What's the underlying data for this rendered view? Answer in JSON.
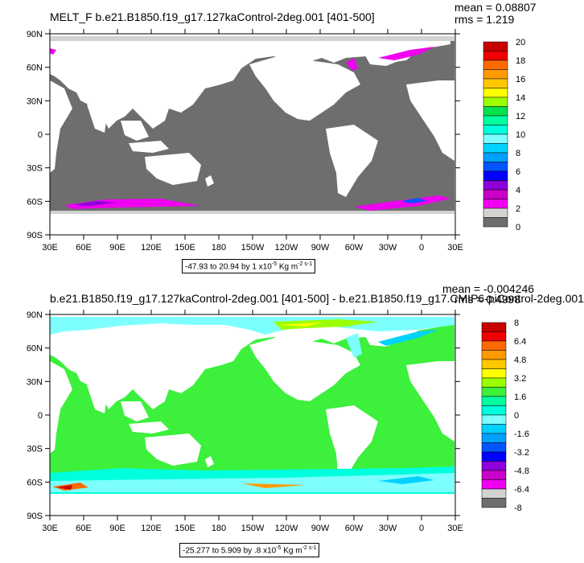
{
  "panel1": {
    "title": "MELT_F b.e21.B1850.f19_g17.127kaControl-2deg.001 [401-500]",
    "mean": "mean = 0.08807",
    "rms": "rms = 1.219",
    "range_text": "-47.93 to 20.94 by 1 x10",
    "range_exp": "-5",
    "range_units": " Kg m",
    "range_units_exp": "-2 s-1",
    "colorbar_labels": [
      "20",
      "18",
      "16",
      "14",
      "12",
      "10",
      "8",
      "6",
      "4",
      "2",
      "0"
    ],
    "colorbar_colors": [
      "#c80000",
      "#f00000",
      "#ff6a00",
      "#ff9a00",
      "#ffc800",
      "#ffff00",
      "#9cff00",
      "#00e14b",
      "#00ffa0",
      "#00ffdc",
      "#7dffff",
      "#00d2ff",
      "#00a0ff",
      "#0055ff",
      "#0000ff",
      "#8c00dc",
      "#c800c8",
      "#f000f0",
      "#d2d2d2",
      "#6e6e6e"
    ]
  },
  "panel2": {
    "title": "b.e21.B1850.f19_g17.127kaControl-2deg.001 [401-500] - b.e21.B1850.f19_g17.CMIP6-piControl-2deg.001",
    "mean": "mean = -0.004246",
    "rms": "rms = 0.4998",
    "range_text": "-25.277 to 5.909 by .8 x10",
    "range_exp": "-5",
    "range_units": " Kg m",
    "range_units_exp": "-2 s-1",
    "colorbar_labels": [
      "8",
      "6.4",
      "4.8",
      "3.2",
      "1.6",
      "0",
      "-1.6",
      "-3.2",
      "-4.8",
      "-6.4",
      "-8"
    ],
    "colorbar_colors": [
      "#c80000",
      "#f00000",
      "#ff6a00",
      "#ff9a00",
      "#ffc800",
      "#ffff00",
      "#9cff00",
      "#3cf03c",
      "#00ffa0",
      "#00ffdc",
      "#7dffff",
      "#00d2ff",
      "#00a0ff",
      "#0055ff",
      "#0000ff",
      "#8c00dc",
      "#c800c8",
      "#f000f0",
      "#d2d2d2",
      "#6e6e6e"
    ]
  },
  "axes": {
    "lat_labels": [
      "90N",
      "60N",
      "30N",
      "0",
      "30S",
      "60S",
      "90S"
    ],
    "lon_labels": [
      "30E",
      "60E",
      "90E",
      "120E",
      "150E",
      "180",
      "150W",
      "120W",
      "90W",
      "60W",
      "30W",
      "0",
      "30E"
    ]
  },
  "colors": {
    "ocean_gray": "#6e6e6e",
    "land": "#ffffff",
    "diff_green": "#3cf03c"
  }
}
